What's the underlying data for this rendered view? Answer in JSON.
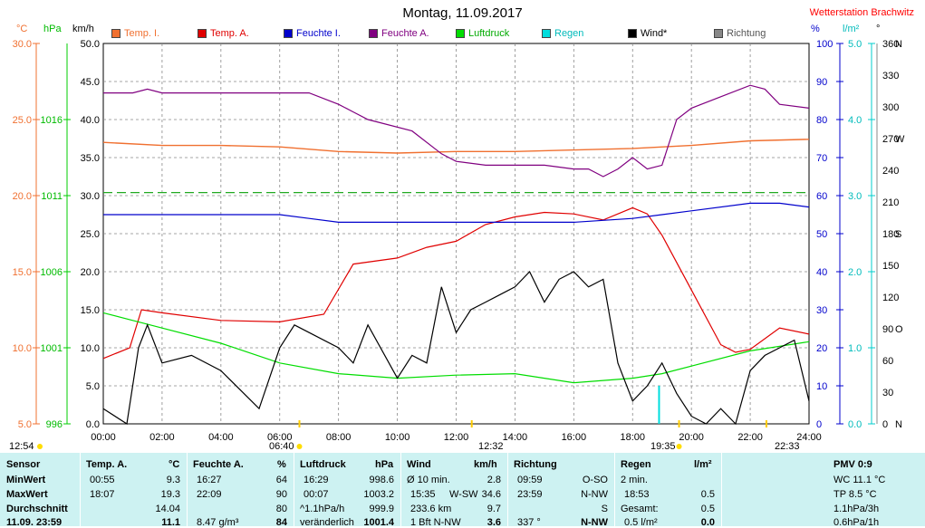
{
  "title": "Montag, 11.09.2017",
  "station": "Wetterstation Brachwitz",
  "axis_units": {
    "temp": "°C",
    "pressure": "hPa",
    "wind": "km/h",
    "humidity": "%",
    "rain": "l/m²",
    "direction": "°"
  },
  "legend": [
    {
      "label": "Temp. I.",
      "color": "#f07030"
    },
    {
      "label": "Temp. A.",
      "color": "#e00000"
    },
    {
      "label": "Feuchte I.",
      "color": "#0000cc"
    },
    {
      "label": "Feuchte A.",
      "color": "#800080"
    },
    {
      "label": "Luftdruck",
      "color": "#00dd00"
    },
    {
      "label": "Regen",
      "color": "#00dddd"
    },
    {
      "label": "Wind*",
      "color": "#000000"
    },
    {
      "label": "Richtung",
      "color": "#888888"
    }
  ],
  "sun_markers": {
    "sunrise_top": "06:40",
    "sunset_top": "19:35",
    "left_time": "12:54",
    "moon_mid": "12:32",
    "moon_right": "22:33"
  },
  "chart_data": {
    "type": "line",
    "x": [
      "00:00",
      "02:00",
      "04:00",
      "06:00",
      "08:00",
      "10:00",
      "12:00",
      "14:00",
      "16:00",
      "18:00",
      "20:00",
      "22:00",
      "24:00"
    ],
    "xlim": [
      0,
      24
    ],
    "axes": {
      "wind": {
        "label": "km/h",
        "ylim": [
          0,
          50
        ],
        "ticks": [
          "0.0",
          "5.0",
          "10.0",
          "15.0",
          "20.0",
          "25.0",
          "30.0",
          "35.0",
          "40.0",
          "45.0",
          "50.0"
        ]
      },
      "temp": {
        "label": "°C",
        "ylim": [
          5,
          30
        ],
        "ticks": [
          "5.0",
          "10.0",
          "15.0",
          "20.0",
          "25.0",
          "30.0"
        ]
      },
      "pressure": {
        "label": "hPa",
        "ylim": [
          996,
          1021
        ],
        "ticks": [
          "996",
          "1001",
          "1006",
          "1011",
          "1016"
        ]
      },
      "humidity": {
        "label": "%",
        "ylim": [
          0,
          100
        ],
        "ticks": [
          "0",
          "10",
          "20",
          "30",
          "40",
          "50",
          "60",
          "70",
          "80",
          "90",
          "100"
        ]
      },
      "rain": {
        "label": "l/m²",
        "ylim": [
          0,
          5
        ],
        "ticks": [
          "0.0",
          "1.0",
          "2.0",
          "3.0",
          "4.0",
          "5.0"
        ]
      },
      "direction": {
        "label": "°",
        "ticks": [
          "0",
          "N",
          "30",
          "60",
          "90",
          "O",
          "120",
          "150",
          "180",
          "S",
          "210",
          "240",
          "270",
          "W",
          "300",
          "330",
          "360",
          "N"
        ]
      }
    },
    "series": [
      {
        "name": "Temp. I.",
        "axis": "temp",
        "x": [
          0,
          2,
          4,
          6,
          8,
          10,
          12,
          14,
          16,
          18,
          20,
          22,
          24
        ],
        "values": [
          23.5,
          23.3,
          23.3,
          23.2,
          22.9,
          22.8,
          22.9,
          22.9,
          23.0,
          23.1,
          23.3,
          23.6,
          23.7
        ]
      },
      {
        "name": "Temp. A.",
        "axis": "temp",
        "x": [
          0,
          0.9,
          1.3,
          2,
          4,
          6,
          7.5,
          8.5,
          10,
          11,
          12,
          13,
          14,
          15,
          16,
          17,
          18,
          18.5,
          19,
          20,
          21,
          21.5,
          22,
          23,
          24
        ],
        "values": [
          9.3,
          10.0,
          12.5,
          12.3,
          11.8,
          11.7,
          12.2,
          15.5,
          15.9,
          16.6,
          17.0,
          18.1,
          18.6,
          18.9,
          18.8,
          18.4,
          19.2,
          18.8,
          17.4,
          13.8,
          10.2,
          9.7,
          9.9,
          11.3,
          10.9
        ]
      },
      {
        "name": "Feuchte I.",
        "axis": "humidity",
        "x": [
          0,
          2,
          4,
          6,
          7,
          8,
          10,
          12,
          14,
          16,
          17,
          18,
          19,
          20,
          22,
          23,
          24
        ],
        "values": [
          55,
          55,
          55,
          55,
          54,
          53,
          53,
          53,
          53,
          53,
          53.5,
          54,
          55,
          56,
          58,
          58,
          57
        ]
      },
      {
        "name": "Feuchte A.",
        "axis": "humidity",
        "x": [
          0,
          1,
          1.5,
          2,
          4,
          6,
          7,
          8,
          8.5,
          9,
          10.5,
          11.5,
          12,
          13,
          14,
          15,
          16,
          16.5,
          17,
          17.5,
          18,
          18.5,
          19,
          19.5,
          20,
          21,
          22,
          22.5,
          23,
          24
        ],
        "values": [
          87,
          87,
          88,
          87,
          87,
          87,
          87,
          84,
          82,
          80,
          77,
          71,
          69,
          68,
          68,
          68,
          67,
          67,
          65,
          67,
          70,
          67,
          68,
          80,
          83,
          86,
          89,
          88,
          84,
          83
        ]
      },
      {
        "name": "Luftdruck",
        "axis": "pressure",
        "x": [
          0,
          1,
          2,
          4,
          6,
          8,
          10,
          12,
          14,
          16,
          18,
          19,
          20,
          22,
          24
        ],
        "values": [
          1003.3,
          1002.8,
          1002.3,
          1001.3,
          1000.0,
          999.3,
          999.0,
          999.2,
          999.3,
          998.7,
          999.0,
          999.3,
          999.8,
          1000.8,
          1001.4
        ]
      },
      {
        "name": "Wind*",
        "axis": "wind",
        "x": [
          0,
          0.8,
          1.2,
          1.5,
          2,
          3,
          4,
          5.3,
          6,
          6.5,
          7,
          8,
          8.5,
          9,
          10,
          10.5,
          11,
          11.5,
          12,
          12.5,
          13,
          13.5,
          14,
          14.5,
          15,
          15.5,
          16,
          16.5,
          17,
          17.5,
          18,
          18.5,
          19,
          19.5,
          20,
          20.5,
          21,
          21.5,
          22,
          22.5,
          23,
          23.5,
          24
        ],
        "values": [
          2,
          0,
          10,
          13,
          8,
          9,
          7,
          2,
          10,
          13,
          12,
          10,
          8,
          13,
          6,
          9,
          8,
          18,
          12,
          15,
          16,
          17,
          18,
          20,
          16,
          19,
          20,
          18,
          19,
          8,
          3,
          5,
          8,
          4,
          1,
          0,
          2,
          0,
          7,
          9,
          10,
          11,
          3
        ]
      },
      {
        "name": "Regen",
        "axis": "rain",
        "x": [
          18.9
        ],
        "values": [
          0.5
        ]
      }
    ]
  },
  "table": {
    "sensor": {
      "header": "Sensor",
      "rows": [
        "MinWert",
        "MaxWert",
        "Durchschnitt",
        "11.09. 23:59"
      ]
    },
    "temp_a": {
      "header": "Temp. A.",
      "unit": "°C",
      "rows": [
        [
          "00:55",
          "9.3"
        ],
        [
          "18:07",
          "19.3"
        ],
        [
          "",
          "14.04"
        ],
        [
          "",
          "11.1"
        ]
      ]
    },
    "feuchte_a": {
      "header": "Feuchte A.",
      "unit": "%",
      "rows": [
        [
          "16:27",
          "64"
        ],
        [
          "22:09",
          "90"
        ],
        [
          "",
          "80"
        ],
        [
          "8.47 g/m³",
          "84"
        ]
      ]
    },
    "luftdruck": {
      "header": "Luftdruck",
      "unit": "hPa",
      "rows": [
        [
          "16:29",
          "998.6"
        ],
        [
          "00:07",
          "1003.2"
        ],
        [
          "^1.1hPa/h",
          "999.9"
        ],
        [
          "veränderlich",
          "1001.4"
        ]
      ]
    },
    "wind": {
      "header": "Wind",
      "unit": "km/h",
      "rows": [
        [
          "Ø 10 min.",
          "",
          "2.8"
        ],
        [
          "15:35",
          "W-SW",
          "34.6"
        ],
        [
          "233.6 km",
          "",
          "9.7"
        ],
        [
          "1 Bft N-NW",
          "",
          "3.6"
        ]
      ]
    },
    "richtung": {
      "header": "Richtung",
      "rows": [
        [
          "09:59",
          "O-SO"
        ],
        [
          "23:59",
          "N-NW"
        ],
        [
          "",
          "S"
        ],
        [
          "337 °",
          "N-NW"
        ]
      ]
    },
    "regen": {
      "header": "Regen",
      "unit": "l/m²",
      "rows": [
        [
          "2 min.",
          ""
        ],
        [
          "18:53",
          "0.5"
        ],
        [
          "Gesamt:",
          "0.5"
        ],
        [
          "0.5 l/m²",
          "0.0"
        ]
      ]
    },
    "pmv": {
      "header": "PMV 0:9",
      "rows": [
        "WC 11.1 °C",
        "TP 8.5 °C",
        "1.1hPa/3h",
        "0.6hPa/1h"
      ]
    }
  }
}
